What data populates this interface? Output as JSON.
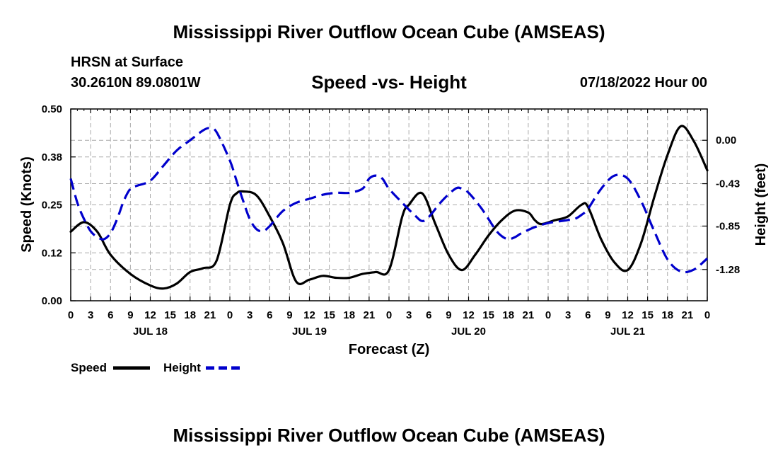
{
  "page": {
    "title": "Mississippi River Outflow Ocean Cube (AMSEAS)",
    "title_bottom": "Mississippi River Outflow Ocean Cube (AMSEAS)",
    "station": "HRSN at Surface",
    "coords": "30.2610N  89.0801W",
    "subtitle": "Speed -vs- Height",
    "datetime": "07/18/2022 Hour 00"
  },
  "chart_data": {
    "type": "line",
    "title": "Speed -vs- Height",
    "xlabel": "Forecast (Z)",
    "ylabel": "Speed (Knots)",
    "y2label": "Height (feet)",
    "xlim": [
      0,
      96
    ],
    "ylim": [
      0,
      0.5
    ],
    "y2lim": [
      -1.59,
      0.31
    ],
    "grid": true,
    "x_ticks": [
      0,
      3,
      6,
      9,
      12,
      15,
      18,
      21,
      24,
      27,
      30,
      33,
      36,
      39,
      42,
      45,
      48,
      51,
      54,
      57,
      60,
      63,
      66,
      69,
      72,
      75,
      78,
      81,
      84,
      87,
      90,
      93,
      96
    ],
    "x_tick_labels": [
      "0",
      "3",
      "6",
      "9",
      "12",
      "15",
      "18",
      "21",
      "0",
      "3",
      "6",
      "9",
      "12",
      "15",
      "18",
      "21",
      "0",
      "3",
      "6",
      "9",
      "12",
      "15",
      "18",
      "21",
      "0",
      "3",
      "6",
      "9",
      "12",
      "15",
      "18",
      "21",
      "0"
    ],
    "day_labels": [
      {
        "x": 12,
        "label": "JUL 18"
      },
      {
        "x": 36,
        "label": "JUL 19"
      },
      {
        "x": 60,
        "label": "JUL 20"
      },
      {
        "x": 84,
        "label": "JUL 21"
      }
    ],
    "y_ticks": [
      0,
      0.125,
      0.25,
      0.375,
      0.5
    ],
    "y_tick_labels": [
      "0.00",
      "0.12",
      "0.25",
      "0.38",
      "0.50"
    ],
    "y2_ticks": [
      0.0,
      -0.43,
      -0.85,
      -1.28
    ],
    "y2_tick_labels": [
      "0.00",
      "-0.43",
      "-0.85",
      "-1.28"
    ],
    "series": [
      {
        "name": "Speed",
        "axis": "left",
        "color": "#000000",
        "dash": "solid",
        "x": [
          0,
          2,
          4,
          6,
          9,
          12,
          14,
          16,
          18,
          20,
          22,
          24,
          25,
          26,
          28,
          30,
          32,
          34,
          36,
          38,
          40,
          42,
          44,
          46,
          48,
          50,
          51,
          53,
          55,
          57,
          59,
          61,
          63,
          65,
          67,
          69,
          70,
          71,
          73,
          75,
          77,
          78,
          80,
          82,
          84,
          86,
          88,
          90,
          92,
          94,
          96
        ],
        "values": [
          0.18,
          0.205,
          0.18,
          0.12,
          0.07,
          0.04,
          0.032,
          0.045,
          0.075,
          0.085,
          0.105,
          0.25,
          0.28,
          0.285,
          0.275,
          0.22,
          0.15,
          0.05,
          0.055,
          0.065,
          0.06,
          0.06,
          0.07,
          0.075,
          0.08,
          0.22,
          0.25,
          0.28,
          0.2,
          0.12,
          0.08,
          0.12,
          0.17,
          0.21,
          0.235,
          0.23,
          0.21,
          0.2,
          0.21,
          0.22,
          0.25,
          0.245,
          0.16,
          0.1,
          0.08,
          0.15,
          0.27,
          0.38,
          0.455,
          0.415,
          0.34
        ]
      },
      {
        "name": "Height",
        "axis": "right",
        "color": "#0000cc",
        "dash": "dashed",
        "x": [
          0,
          1,
          2,
          3,
          4,
          5,
          6,
          7,
          8,
          9,
          10,
          12,
          14,
          16,
          18,
          20,
          21,
          22,
          24,
          25,
          26,
          27,
          28,
          29,
          30,
          32,
          34,
          36,
          38,
          40,
          42,
          44,
          45,
          46,
          47,
          48,
          50,
          52,
          53,
          54,
          56,
          58,
          59,
          60,
          62,
          64,
          65,
          66,
          67,
          68,
          70,
          72,
          74,
          75,
          76,
          77,
          78,
          80,
          82,
          84,
          86,
          88,
          90,
          92,
          94,
          96
        ],
        "values": [
          -0.38,
          -0.62,
          -0.78,
          -0.9,
          -0.96,
          -0.98,
          -0.92,
          -0.78,
          -0.6,
          -0.48,
          -0.45,
          -0.4,
          -0.25,
          -0.1,
          0.0,
          0.1,
          0.12,
          0.08,
          -0.2,
          -0.4,
          -0.6,
          -0.78,
          -0.88,
          -0.9,
          -0.85,
          -0.7,
          -0.62,
          -0.58,
          -0.54,
          -0.52,
          -0.52,
          -0.48,
          -0.38,
          -0.35,
          -0.38,
          -0.48,
          -0.62,
          -0.75,
          -0.8,
          -0.76,
          -0.6,
          -0.48,
          -0.48,
          -0.52,
          -0.68,
          -0.88,
          -0.95,
          -0.98,
          -0.96,
          -0.92,
          -0.86,
          -0.82,
          -0.8,
          -0.79,
          -0.78,
          -0.74,
          -0.68,
          -0.48,
          -0.35,
          -0.38,
          -0.6,
          -0.9,
          -1.18,
          -1.3,
          -1.28,
          -1.17
        ]
      }
    ],
    "legend": [
      {
        "label": "Speed",
        "color": "#000000",
        "dash": "solid"
      },
      {
        "label": "Height",
        "color": "#0000cc",
        "dash": "dashed"
      }
    ]
  }
}
